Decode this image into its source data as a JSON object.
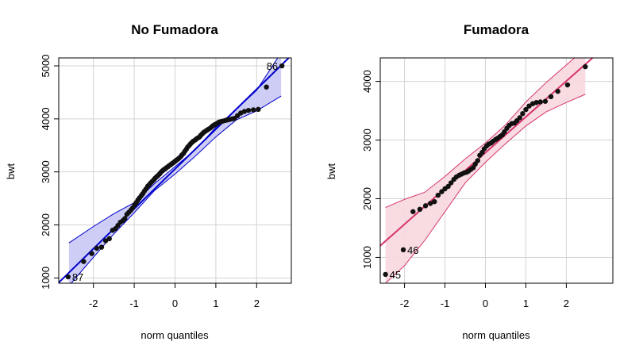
{
  "chart_data": [
    {
      "type": "scatter",
      "title": "No Fumadora",
      "xlabel": "norm quantiles",
      "ylabel": "bwt",
      "xlim": [
        -2.85,
        2.85
      ],
      "ylim": [
        900,
        5150
      ],
      "xticks": [
        -2,
        -1,
        0,
        1,
        2
      ],
      "xtick_labels": [
        "-2",
        "-1",
        "0",
        "1",
        "2"
      ],
      "yticks": [
        1000,
        2000,
        3000,
        4000,
        5000
      ],
      "ytick_labels": [
        "1000",
        "2000",
        "3000",
        "4000",
        "5000"
      ],
      "grid": true,
      "legend": "none",
      "colors": {
        "line": "#0000cd",
        "band_fill": "#c8c8f5",
        "band_edge": "#0000cd",
        "points": "#111111"
      },
      "reference_line": {
        "intercept": 3055,
        "slope": 752
      },
      "envelope": {
        "x": [
          -2.6,
          -2.0,
          -1.5,
          -1.0,
          -0.5,
          0.0,
          0.5,
          1.0,
          1.5,
          2.0,
          2.6
        ],
        "lower": [
          850,
          1390,
          1830,
          2230,
          2650,
          2960,
          3300,
          3660,
          3980,
          4150,
          4430
        ],
        "upper": [
          1660,
          1970,
          2210,
          2420,
          2780,
          3100,
          3420,
          3840,
          4180,
          4540,
          5250
        ]
      },
      "points": {
        "x": [
          -2.62,
          -2.24,
          -2.04,
          -1.92,
          -1.8,
          -1.7,
          -1.61,
          -1.53,
          -1.46,
          -1.4,
          -1.34,
          -1.28,
          -1.23,
          -1.18,
          -1.13,
          -1.08,
          -1.04,
          -0.99,
          -0.95,
          -0.91,
          -0.87,
          -0.83,
          -0.79,
          -0.75,
          -0.71,
          -0.67,
          -0.63,
          -0.6,
          -0.56,
          -0.52,
          -0.49,
          -0.45,
          -0.42,
          -0.38,
          -0.35,
          -0.31,
          -0.28,
          -0.24,
          -0.21,
          -0.17,
          -0.14,
          -0.1,
          -0.07,
          -0.03,
          0.0,
          0.03,
          0.07,
          0.1,
          0.14,
          0.17,
          0.21,
          0.24,
          0.28,
          0.31,
          0.35,
          0.38,
          0.42,
          0.45,
          0.49,
          0.52,
          0.56,
          0.6,
          0.63,
          0.67,
          0.71,
          0.75,
          0.79,
          0.83,
          0.87,
          0.91,
          0.95,
          0.99,
          1.04,
          1.08,
          1.13,
          1.18,
          1.23,
          1.28,
          1.34,
          1.4,
          1.46,
          1.53,
          1.61,
          1.7,
          1.8,
          1.92,
          2.04,
          2.24,
          2.62
        ],
        "y": [
          1020,
          1310,
          1460,
          1560,
          1580,
          1700,
          1740,
          1900,
          1930,
          1990,
          2050,
          2080,
          2120,
          2200,
          2240,
          2280,
          2320,
          2380,
          2420,
          2470,
          2510,
          2550,
          2590,
          2640,
          2680,
          2730,
          2760,
          2790,
          2820,
          2850,
          2880,
          2910,
          2930,
          2960,
          2990,
          3020,
          3040,
          3060,
          3080,
          3100,
          3120,
          3140,
          3160,
          3180,
          3200,
          3220,
          3240,
          3260,
          3290,
          3320,
          3350,
          3390,
          3430,
          3470,
          3500,
          3530,
          3560,
          3580,
          3600,
          3620,
          3640,
          3660,
          3690,
          3720,
          3750,
          3770,
          3790,
          3810,
          3830,
          3860,
          3880,
          3900,
          3920,
          3940,
          3950,
          3960,
          3970,
          3980,
          3990,
          4000,
          4010,
          4060,
          4110,
          4140,
          4160,
          4170,
          4180,
          4600,
          5000
        ]
      },
      "point_labels": [
        {
          "text": "86",
          "x": 2.62,
          "y": 5000,
          "side": "left"
        },
        {
          "text": "87",
          "x": -2.62,
          "y": 1020,
          "side": "right"
        }
      ]
    },
    {
      "type": "scatter",
      "title": "Fumadora",
      "xlabel": "norm quantiles",
      "ylabel": "bwt",
      "xlim": [
        -2.6,
        3.15
      ],
      "ylim": [
        560,
        4400
      ],
      "xticks": [
        -2,
        -1,
        0,
        1,
        2
      ],
      "xtick_labels": [
        "-2",
        "-1",
        "0",
        "1",
        "2"
      ],
      "yticks": [
        1000,
        2000,
        3000,
        4000
      ],
      "ytick_labels": [
        "1000",
        "2000",
        "3000",
        "4000"
      ],
      "grid": true,
      "legend": "none",
      "colors": {
        "line": "#d6336c",
        "band_fill": "#f7d8df",
        "band_edge": "#d6336c",
        "points": "#111111"
      },
      "reference_line": {
        "intercept": 2785,
        "slope": 610
      },
      "envelope": {
        "x": [
          -2.47,
          -2.0,
          -1.5,
          -1.0,
          -0.5,
          0.0,
          0.5,
          1.0,
          1.5,
          2.0,
          2.47
        ],
        "lower": [
          560,
          860,
          1290,
          1780,
          2270,
          2620,
          2940,
          3240,
          3480,
          3640,
          3780
        ],
        "upper": [
          1850,
          1990,
          2110,
          2380,
          2680,
          2950,
          3260,
          3650,
          3980,
          4280,
          4560
        ]
      },
      "points": {
        "x": [
          -2.47,
          -2.03,
          -1.79,
          -1.62,
          -1.48,
          -1.36,
          -1.26,
          -1.17,
          -1.08,
          -1.0,
          -0.92,
          -0.85,
          -0.78,
          -0.72,
          -0.65,
          -0.59,
          -0.53,
          -0.47,
          -0.42,
          -0.36,
          -0.3,
          -0.25,
          -0.19,
          -0.14,
          -0.08,
          -0.03,
          0.03,
          0.08,
          0.14,
          0.19,
          0.25,
          0.3,
          0.36,
          0.42,
          0.47,
          0.53,
          0.59,
          0.65,
          0.72,
          0.78,
          0.85,
          0.92,
          1.0,
          1.08,
          1.17,
          1.26,
          1.36,
          1.48,
          1.62,
          1.79,
          2.03,
          2.47
        ],
        "y": [
          710,
          1130,
          1780,
          1820,
          1880,
          1920,
          1950,
          2060,
          2120,
          2170,
          2210,
          2270,
          2330,
          2370,
          2400,
          2420,
          2440,
          2450,
          2470,
          2500,
          2530,
          2590,
          2650,
          2740,
          2790,
          2850,
          2900,
          2930,
          2950,
          2980,
          3010,
          3030,
          3060,
          3090,
          3140,
          3200,
          3250,
          3280,
          3290,
          3330,
          3380,
          3450,
          3520,
          3580,
          3620,
          3640,
          3650,
          3660,
          3740,
          3830,
          3940,
          4250
        ]
      },
      "point_labels": [
        {
          "text": "46",
          "x": -2.03,
          "y": 1130,
          "side": "right"
        },
        {
          "text": "45",
          "x": -2.47,
          "y": 710,
          "side": "right"
        }
      ]
    }
  ]
}
